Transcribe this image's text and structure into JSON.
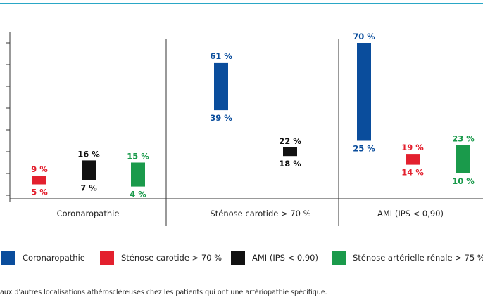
{
  "chart_data": {
    "type": "bar",
    "subtype": "floating-range",
    "groups": [
      "Coronaropathie",
      "Sténose carotide > 70 %",
      "AMI (IPS < 0,90)"
    ],
    "series": [
      {
        "name": "Coronaropathie",
        "color": "#0a4d9c",
        "ranges": [
          null,
          [
            39,
            61
          ],
          [
            25,
            70
          ]
        ],
        "labels": [
          null,
          [
            "39 %",
            "61 %"
          ],
          [
            "25 %",
            "70 %"
          ]
        ]
      },
      {
        "name": "Sténose carotide > 70 %",
        "color": "#e3202e",
        "ranges": [
          [
            5,
            9
          ],
          null,
          [
            14,
            19
          ]
        ],
        "labels": [
          [
            "5 %",
            "9 %"
          ],
          null,
          [
            "14 %",
            "19 %"
          ]
        ]
      },
      {
        "name": "AMI (IPS < 0,90)",
        "color": "#111111",
        "ranges": [
          [
            7,
            16
          ],
          [
            18,
            22
          ],
          null
        ],
        "labels": [
          [
            "7 %",
            "16 %"
          ],
          [
            "18 %",
            "22 %"
          ],
          null
        ]
      },
      {
        "name": "Sténose artérielle rénale > 75 %",
        "color": "#1a9a4b",
        "ranges": [
          [
            4,
            15
          ],
          null,
          [
            10,
            23
          ]
        ],
        "labels": [
          [
            "4 %",
            "15 %"
          ],
          null,
          [
            "10 %",
            "23 %"
          ]
        ]
      }
    ],
    "ylim": [
      0,
      70
    ],
    "y_ticks": [
      0,
      10,
      20,
      30,
      40,
      50,
      60,
      70
    ],
    "grid": false,
    "legend_position": "bottom"
  },
  "caption": "aux d'autres localisations athéroscléreuses chez les patients qui ont une artériopathie spécifique."
}
